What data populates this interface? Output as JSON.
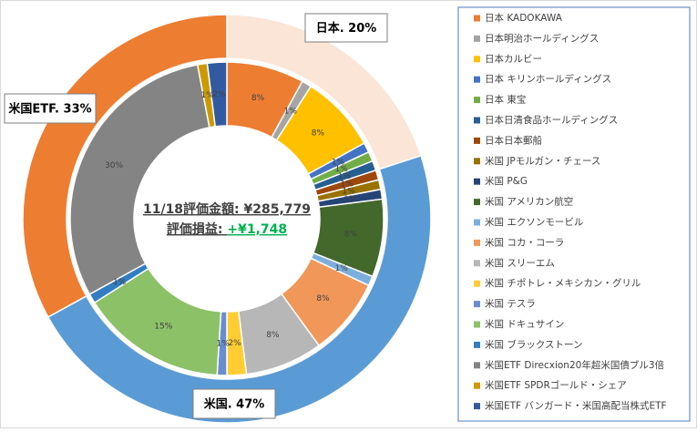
{
  "chart_data": {
    "type": "nested-donut",
    "center_text": [
      "11/18評価金額: ¥285,779",
      "評価損益: "
    ],
    "gain": "+¥1,748",
    "outer": {
      "values": [
        20,
        47,
        33
      ],
      "value_labels": [
        "日本. 20%",
        "米国. 47%",
        "米国ETF. 33%"
      ],
      "colors": [
        "#fbe5d6",
        "#5b9bd5",
        "#ed7d31"
      ]
    },
    "inner": {
      "categories": [
        "日本 KADOKAWA",
        "日本明治ホールディングス",
        "日本カルビー",
        "日本 キリンホールディングス",
        "日本 東宝",
        "日本日清食品ホールディングス",
        "日本日本郵船",
        "米国 JPモルガン・チェース",
        "米国 P&G",
        "米国 アメリカン航空",
        "米国 エクソンモービル",
        "米国 コカ・コーラ",
        "米国 スリーエム",
        "米国 チポトレ・メキシカン・グリル",
        "米国 テスラ",
        "米国 ドキュサイン",
        "米国 ブラックストーン",
        "米国ETF Direcxion20年超米国債ブル3倍",
        "米国ETF SPDRゴールド・シェア",
        "米国ETF バンガード・米国高配当株式ETF"
      ],
      "values": [
        8,
        1,
        8,
        1,
        1,
        1,
        1,
        1,
        1,
        8,
        1,
        8,
        8,
        2,
        1,
        15,
        1,
        30,
        1,
        2
      ],
      "value_labels": [
        "8%",
        "1%",
        "8%",
        "1%",
        "1%",
        "1%",
        "1%",
        "1%",
        "1%",
        "8%",
        "1%",
        "8%",
        "8%",
        "2%",
        "1%",
        "15%",
        "1%",
        "30%",
        "1%",
        "2%"
      ],
      "colors": [
        "#ed7d31",
        "#a5a5a5",
        "#ffc000",
        "#4472c4",
        "#70ad47",
        "#255e91",
        "#9e480e",
        "#997300",
        "#264478",
        "#43682b",
        "#7cafdd",
        "#f1975a",
        "#b7b7b7",
        "#ffcd33",
        "#698ed0",
        "#8cc168",
        "#327dc2",
        "#848484",
        "#cc9a00",
        "#335aa1"
      ]
    }
  }
}
